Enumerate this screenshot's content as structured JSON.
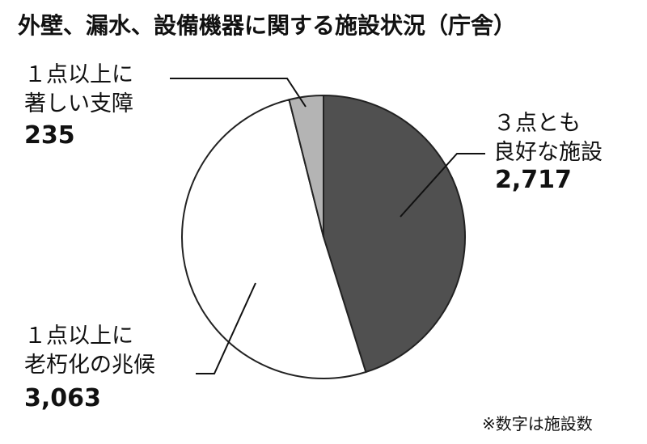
{
  "chart_data": {
    "type": "pie",
    "title": "外壁、漏水、設備機器に関する施設状況（庁舎）",
    "categories": [
      "３点とも\n良好な施設",
      "１点以上に\n老朽化の兆候",
      "１点以上に\n著しい支障"
    ],
    "values": [
      2717,
      3063,
      235
    ],
    "value_labels": [
      "2,717",
      "3,063",
      "235"
    ],
    "colors": [
      "#505050",
      "#ffffff",
      "#b4b4b4"
    ],
    "note": "※数字は施設数"
  }
}
